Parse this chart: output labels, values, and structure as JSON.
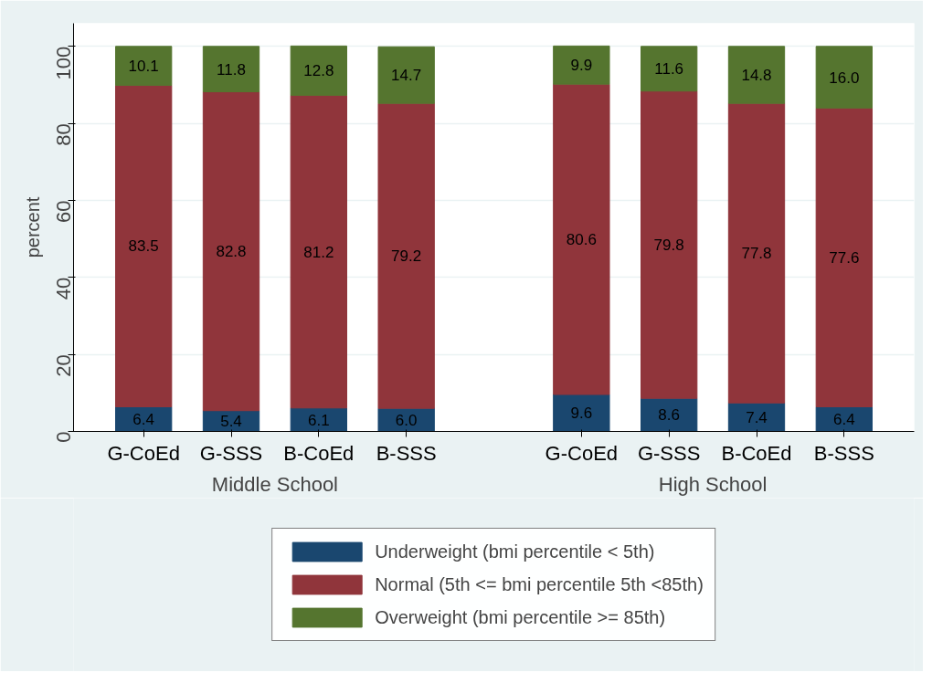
{
  "chart_data": {
    "type": "bar",
    "stacked": true,
    "ylabel": "percent",
    "categories": [
      "G-CoEd",
      "G-SSS",
      "B-CoEd",
      "B-SSS",
      "G-CoEd",
      "G-SSS",
      "B-CoEd",
      "B-SSS"
    ],
    "annotations": [
      "Middle School",
      "High School"
    ],
    "series": [
      {
        "name": "Underweight (bmi percentile < 5th)",
        "color": "#1a476f",
        "values": [
          6.4,
          5.4,
          6.1,
          6.0,
          9.6,
          8.6,
          7.4,
          6.4
        ],
        "value_labels": [
          "6.4",
          "5.4",
          "6.1",
          "6.0",
          "9.6",
          "8.6",
          "7.4",
          "6.4"
        ]
      },
      {
        "name": "Normal (5th <= bmi percentile 5th <85th)",
        "color": "#90353b",
        "values": [
          83.5,
          82.8,
          81.2,
          79.2,
          80.6,
          79.8,
          77.8,
          77.6
        ],
        "value_labels": [
          "83.5",
          "82.8",
          "81.2",
          "79.2",
          "80.6",
          "79.8",
          "77.8",
          "77.6"
        ]
      },
      {
        "name": "Overweight (bmi percentile >= 85th)",
        "color": "#55752f",
        "values": [
          10.1,
          11.8,
          12.8,
          14.7,
          9.9,
          11.6,
          14.8,
          16.0
        ],
        "value_labels": [
          "10.1",
          "11.8",
          "12.8",
          "14.7",
          "9.9",
          "11.6",
          "14.8",
          "16.0"
        ]
      }
    ],
    "ylim": [
      0,
      106
    ],
    "yticks": [
      0,
      20,
      40,
      60,
      80,
      100
    ],
    "grid": "y",
    "legend": "bottom"
  }
}
